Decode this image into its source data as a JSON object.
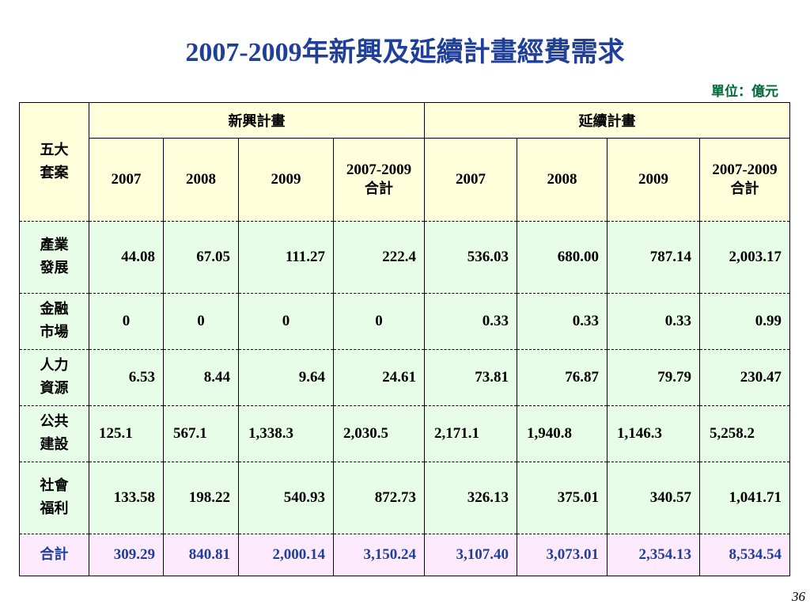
{
  "title": "2007-2009年新興及延續計畫經費需求",
  "unit": "單位：億元",
  "page_number": "36",
  "table": {
    "corner_label_line1": "五大",
    "corner_label_line2": "套案",
    "group_new": "新興計畫",
    "group_cont": "延續計畫",
    "years": [
      "2007",
      "2008",
      "2009"
    ],
    "sum_label_line1": "2007-2009",
    "sum_label_line2": "合計",
    "rows": [
      {
        "line1": "產業",
        "line2": "發展",
        "values": [
          "44.08",
          "67.05",
          "111.27",
          "222.4",
          "536.03",
          "680.00",
          "787.14",
          "2,003.17"
        ]
      },
      {
        "line1": "金融",
        "line2": "市場",
        "values": [
          "0",
          "0",
          "0",
          "0",
          "0.33",
          "0.33",
          "0.33",
          "0.99"
        ]
      },
      {
        "line1": "人力",
        "line2": "資源",
        "values": [
          "6.53",
          "8.44",
          "9.64",
          "24.61",
          "73.81",
          "76.87",
          "79.79",
          "230.47"
        ]
      },
      {
        "line1": "公共",
        "line2": "建設",
        "values": [
          "125.1",
          "567.1",
          "1,338.3",
          "2,030.5",
          "2,171.1",
          "1,940.8",
          "1,146.3",
          "5,258.2"
        ]
      },
      {
        "line1": "社會",
        "line2": "福利",
        "values": [
          "133.58",
          "198.22",
          "540.93",
          "872.73",
          "326.13",
          "375.01",
          "340.57",
          "1,041.71"
        ]
      }
    ],
    "total": {
      "label": "合計",
      "values": [
        "309.29",
        "840.81",
        "2,000.14",
        "3,150.24",
        "3,107.40",
        "3,073.01",
        "2,354.13",
        "8,534.54"
      ]
    }
  }
}
